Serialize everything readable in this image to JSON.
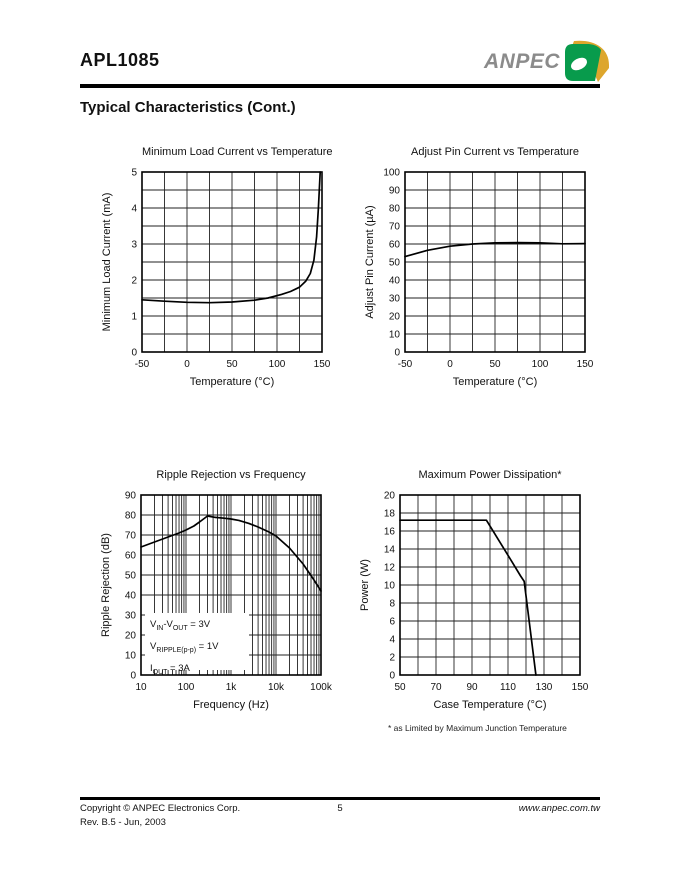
{
  "header": {
    "part_number": "APL1085",
    "brand": "ANPEC",
    "section_title": "Typical Characteristics (Cont.)"
  },
  "logo": {
    "green": "#089b4c",
    "gold": "#dda62d",
    "text_color": "#8b8b8b"
  },
  "footer": {
    "copyright": "Copyright © ANPEC Electronics Corp.",
    "revision": "Rev. B.5 - Jun, 2003",
    "page_number": "5",
    "website": "www.anpec.com.tw"
  },
  "chart_data": [
    {
      "type": "line",
      "title": "Minimum Load Current vs Temperature",
      "xlabel": "Temperature (°C)",
      "ylabel": "Minimum Load Current (mA)",
      "xscale": "linear",
      "xlim": [
        -50,
        150
      ],
      "xgrid": 25,
      "xticks": [
        -50,
        0,
        50,
        100,
        150
      ],
      "ylim": [
        0,
        5
      ],
      "ygrid": 0.5,
      "yticks": [
        0,
        1,
        2,
        3,
        4,
        5
      ],
      "grid": "on",
      "series": [
        {
          "name": "minimum load current",
          "x": [
            -50,
            -25,
            0,
            25,
            50,
            75,
            90,
            105,
            115,
            125,
            132,
            137,
            141,
            144,
            146,
            148
          ],
          "y": [
            1.45,
            1.41,
            1.38,
            1.37,
            1.39,
            1.44,
            1.5,
            1.6,
            1.68,
            1.8,
            1.97,
            2.18,
            2.55,
            3.2,
            4.0,
            5.0
          ]
        }
      ]
    },
    {
      "type": "line",
      "title": "Adjust Pin Current vs Temperature",
      "xlabel": "Temperature (°C)",
      "ylabel": "Adjust Pin Current (µA)",
      "xscale": "linear",
      "xlim": [
        -50,
        150
      ],
      "xgrid": 25,
      "xticks": [
        -50,
        0,
        50,
        100,
        150
      ],
      "ylim": [
        0,
        100
      ],
      "ygrid": 10,
      "yticks": [
        0,
        10,
        20,
        30,
        40,
        50,
        60,
        70,
        80,
        90,
        100
      ],
      "grid": "on",
      "series": [
        {
          "name": "adjust pin current",
          "x": [
            -50,
            -25,
            0,
            25,
            50,
            75,
            100,
            125,
            150
          ],
          "y": [
            53,
            56.5,
            58.8,
            60,
            60.6,
            60.8,
            60.6,
            60.1,
            60.2
          ]
        }
      ]
    },
    {
      "type": "line",
      "title": "Ripple Rejection vs Frequency",
      "xlabel": "Frequency (Hz)",
      "ylabel": "Ripple Rejection (dB)",
      "xscale": "log",
      "xlim": [
        10,
        100000
      ],
      "xticks": [
        10,
        100,
        1000,
        10000,
        100000
      ],
      "xticklabels": [
        "10",
        "100",
        "1k",
        "10k",
        "100k"
      ],
      "ylim": [
        0,
        90
      ],
      "ygrid": 10,
      "yticks": [
        0,
        10,
        20,
        30,
        40,
        50,
        60,
        70,
        80,
        90
      ],
      "grid": "on",
      "annotation": {
        "lines": [
          "V~IN~-V~OUT~ = 3V",
          "V~RIPPLE(p-p)~ = 1V",
          "I~OUT~ = 3A"
        ]
      },
      "series": [
        {
          "name": "ripple rejection",
          "x": [
            10,
            20,
            40,
            70,
            100,
            150,
            200,
            300,
            450,
            700,
            1000,
            1500,
            2500,
            4000,
            7000,
            10000,
            20000,
            40000,
            70000,
            100000
          ],
          "y": [
            64,
            66.5,
            69,
            71,
            72.5,
            74.5,
            76.5,
            79.5,
            78.8,
            78.4,
            78,
            77.3,
            75.8,
            74,
            71.5,
            69.5,
            63.5,
            55.5,
            47.5,
            42
          ]
        }
      ]
    },
    {
      "type": "line",
      "title": "Maximum Power Dissipation*",
      "xlabel": "Case Temperature (°C)",
      "ylabel": "Power (W)",
      "xscale": "linear",
      "xlim": [
        50,
        150
      ],
      "xgrid": 10,
      "xticks": [
        50,
        70,
        90,
        110,
        130,
        150
      ],
      "ylim": [
        0,
        20
      ],
      "ygrid": 2,
      "yticks": [
        0,
        2,
        4,
        6,
        8,
        10,
        12,
        14,
        16,
        18,
        20
      ],
      "grid": "on",
      "footnote": "* as Limited by Maximum Junction Temperature",
      "series": [
        {
          "name": "max power",
          "x": [
            50,
            98,
            110,
            117,
            119,
            125.5
          ],
          "y": [
            17.2,
            17.2,
            13.3,
            11,
            10.4,
            0
          ]
        }
      ]
    }
  ]
}
